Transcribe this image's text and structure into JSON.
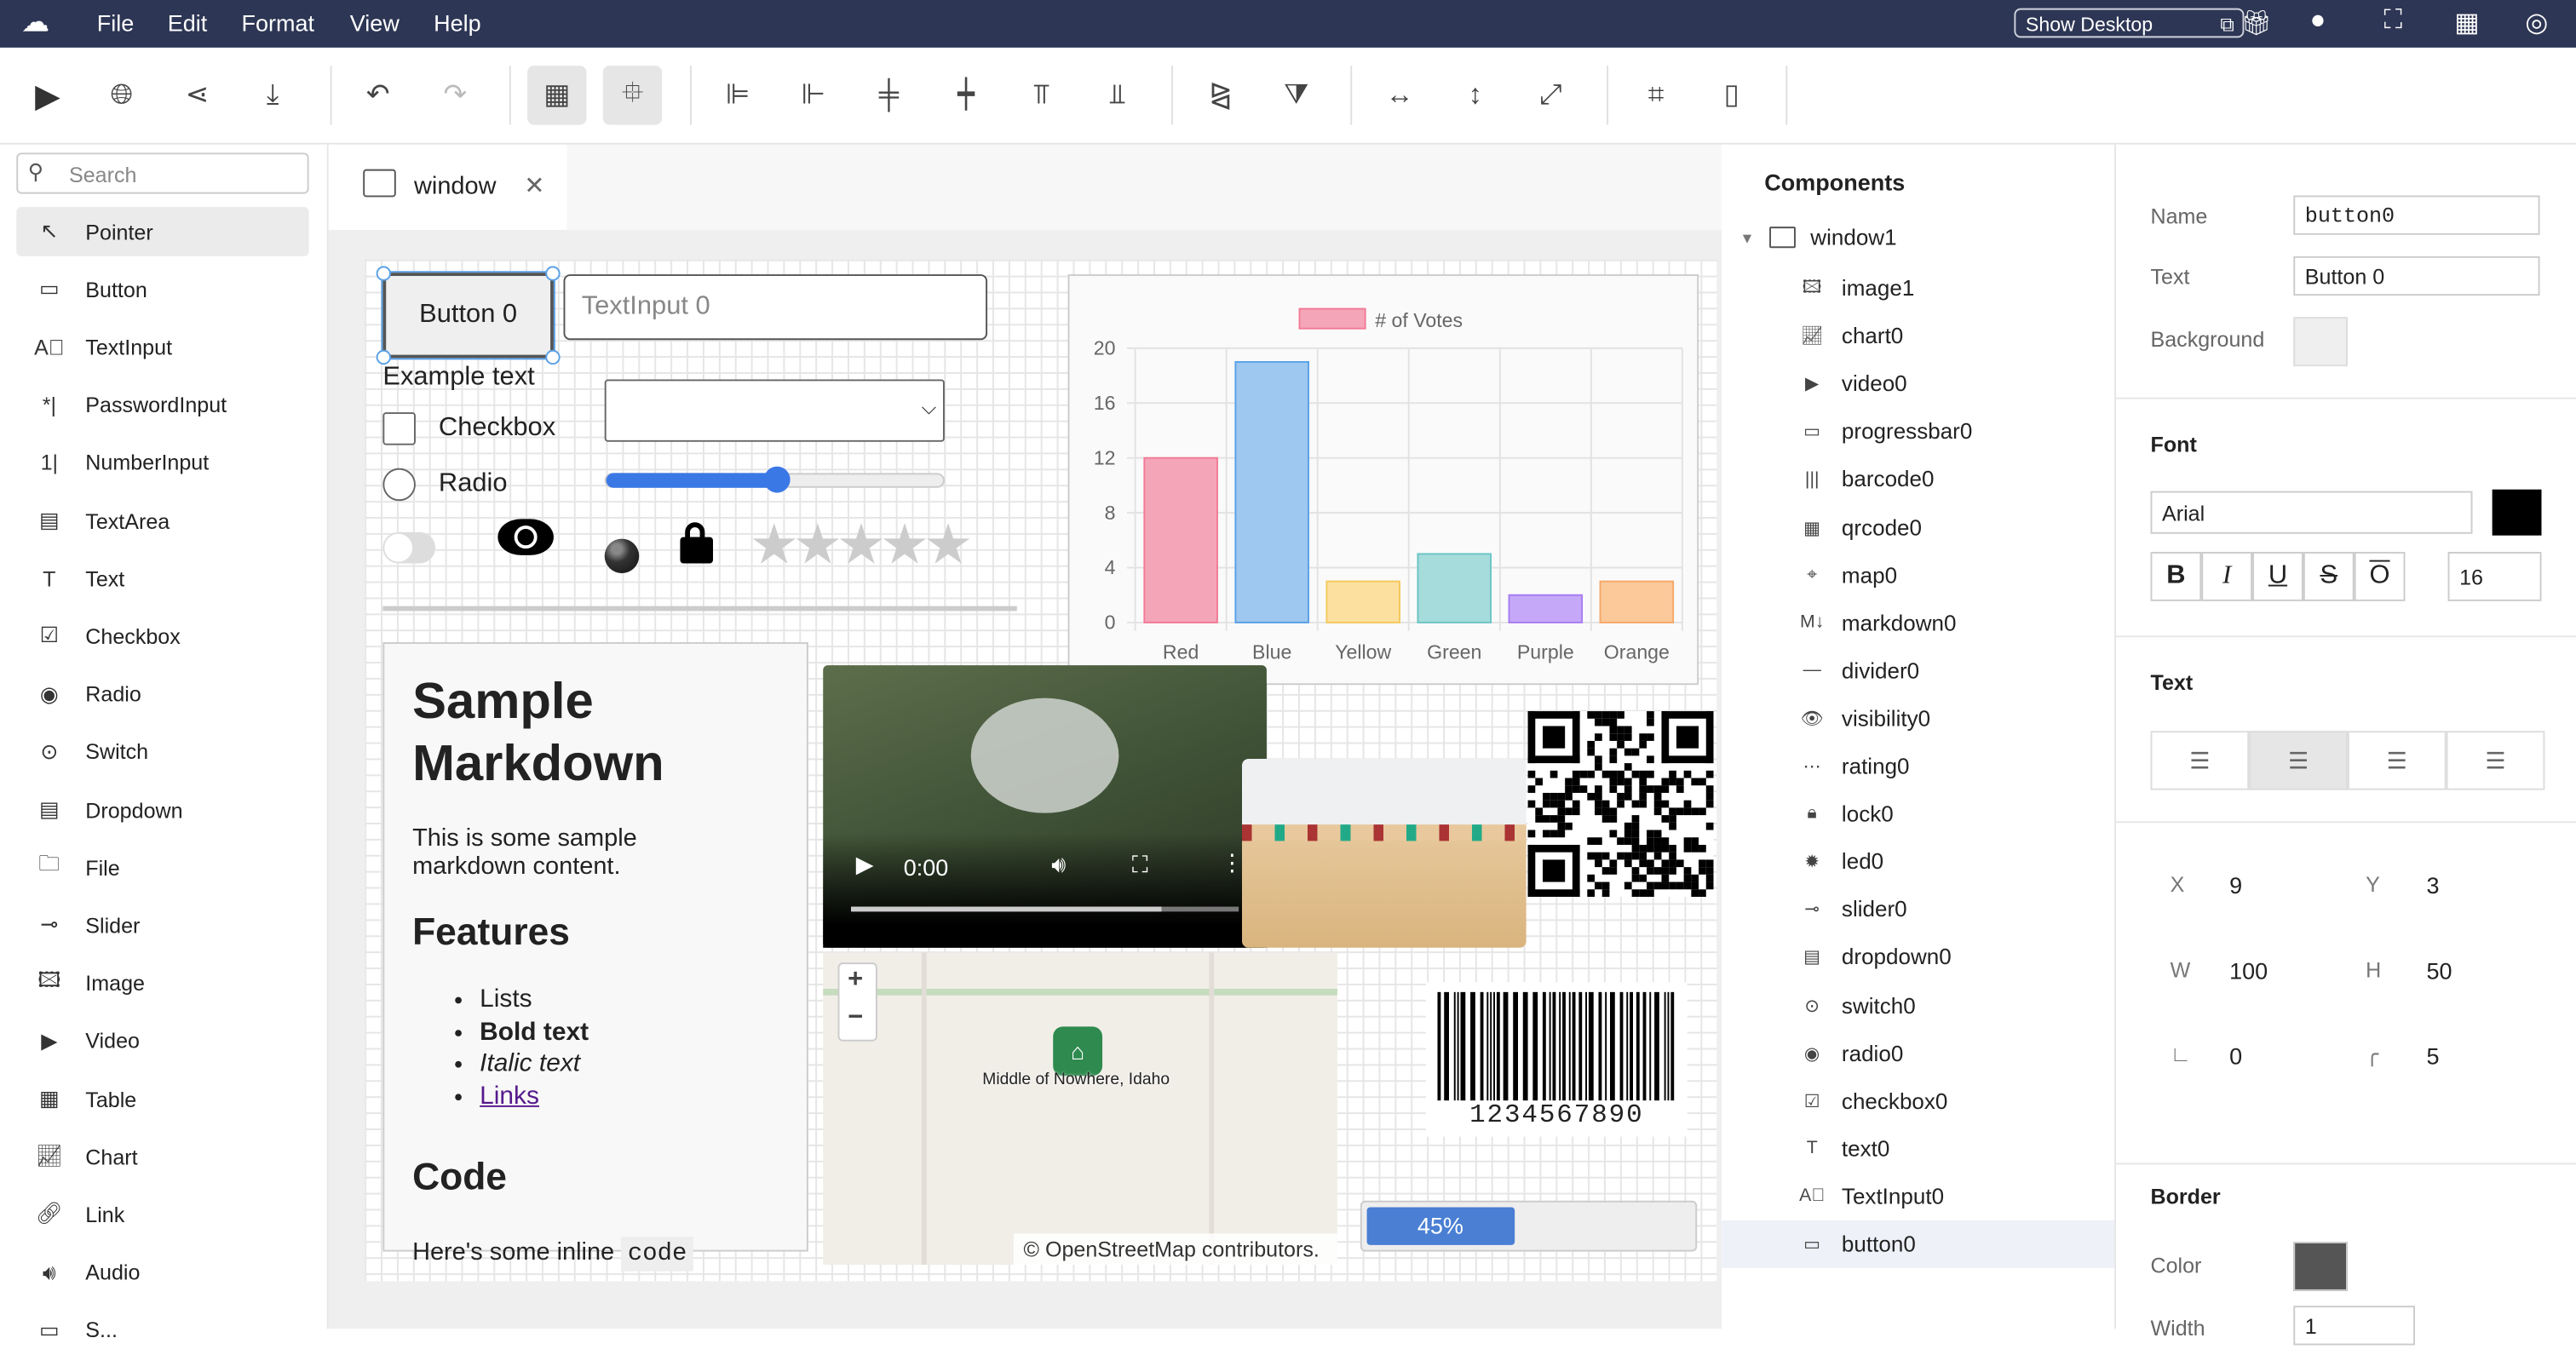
{
  "menubar": {
    "items": [
      "File",
      "Edit",
      "Format",
      "View",
      "Help"
    ],
    "show_desktop": "Show Desktop"
  },
  "sidebar": {
    "search_placeholder": "Search",
    "items": [
      {
        "label": "Pointer",
        "icon": "pointer-icon"
      },
      {
        "label": "Button",
        "icon": "button-icon"
      },
      {
        "label": "TextInput",
        "icon": "textinput-icon"
      },
      {
        "label": "PasswordInput",
        "icon": "password-icon"
      },
      {
        "label": "NumberInput",
        "icon": "number-icon"
      },
      {
        "label": "TextArea",
        "icon": "textarea-icon"
      },
      {
        "label": "Text",
        "icon": "text-icon"
      },
      {
        "label": "Checkbox",
        "icon": "checkbox-icon"
      },
      {
        "label": "Radio",
        "icon": "radio-icon"
      },
      {
        "label": "Switch",
        "icon": "switch-icon"
      },
      {
        "label": "Dropdown",
        "icon": "dropdown-icon"
      },
      {
        "label": "File",
        "icon": "folder-icon"
      },
      {
        "label": "Slider",
        "icon": "slider-icon"
      },
      {
        "label": "Image",
        "icon": "image-icon"
      },
      {
        "label": "Video",
        "icon": "video-icon"
      },
      {
        "label": "Table",
        "icon": "table-icon"
      },
      {
        "label": "Chart",
        "icon": "chart-icon"
      },
      {
        "label": "Link",
        "icon": "link-icon"
      },
      {
        "label": "Audio",
        "icon": "audio-icon"
      },
      {
        "label": "S...",
        "icon": "generic-icon"
      }
    ]
  },
  "tab": {
    "label": "window"
  },
  "canvas": {
    "button": "Button 0",
    "textinput_placeholder": "TextInput 0",
    "text": "Example text",
    "checkbox": "Checkbox",
    "radio": "Radio",
    "slider_value": 0.5,
    "rating": 0,
    "markdown": {
      "h1": "Sample Markdown",
      "p": "This is some sample markdown content.",
      "h2": "Features",
      "list": [
        "Lists",
        "Bold text",
        "Italic text",
        "Links"
      ],
      "h3": "Code",
      "code_line": "Here's some inline",
      "code": "code"
    },
    "map": {
      "marker": "Middle of Nowhere, Idaho",
      "attribution": "© OpenStreetMap contributors.",
      "zoom_in": "+",
      "zoom_out": "−"
    },
    "video": {
      "time": "0:00"
    },
    "barcode": "1234567890",
    "progress": {
      "value": 45,
      "label": "45%"
    }
  },
  "chart_data": {
    "type": "bar",
    "categories": [
      "Red",
      "Blue",
      "Yellow",
      "Green",
      "Purple",
      "Orange"
    ],
    "series": [
      {
        "name": "# of Votes",
        "values": [
          12,
          19,
          3,
          5,
          2,
          3
        ]
      }
    ],
    "ylim": [
      0,
      20
    ],
    "yticks": [
      "0",
      "4",
      "8",
      "12",
      "16",
      "20"
    ],
    "grid": true,
    "legend": "top",
    "colors": [
      "#f4a6b8",
      "#9ec8ef",
      "#fbe0a0",
      "#a6dcdc",
      "#c5a8f7",
      "#fbc99a"
    ],
    "borders": [
      "#f27a95",
      "#5aa1e6",
      "#f5c95e",
      "#6cc4c4",
      "#a77cf2",
      "#f6a868"
    ]
  },
  "components": {
    "title": "Components",
    "root": "window1",
    "items": [
      {
        "label": "image1",
        "icon": "image-icon"
      },
      {
        "label": "chart0",
        "icon": "chart-icon"
      },
      {
        "label": "video0",
        "icon": "video-icon"
      },
      {
        "label": "progressbar0",
        "icon": "progress-icon"
      },
      {
        "label": "barcode0",
        "icon": "barcode-icon"
      },
      {
        "label": "qrcode0",
        "icon": "qrcode-icon"
      },
      {
        "label": "map0",
        "icon": "map-icon"
      },
      {
        "label": "markdown0",
        "icon": "markdown-icon"
      },
      {
        "label": "divider0",
        "icon": "divider-icon"
      },
      {
        "label": "visibility0",
        "icon": "eye-icon"
      },
      {
        "label": "rating0",
        "icon": "rating-icon"
      },
      {
        "label": "lock0",
        "icon": "lock-icon"
      },
      {
        "label": "led0",
        "icon": "led-icon"
      },
      {
        "label": "slider0",
        "icon": "slider-icon"
      },
      {
        "label": "dropdown0",
        "icon": "dropdown-icon"
      },
      {
        "label": "switch0",
        "icon": "switch-icon"
      },
      {
        "label": "radio0",
        "icon": "radio-icon"
      },
      {
        "label": "checkbox0",
        "icon": "checkbox-icon"
      },
      {
        "label": "text0",
        "icon": "text-icon"
      },
      {
        "label": "TextInput0",
        "icon": "textinput-icon"
      },
      {
        "label": "button0",
        "icon": "button-icon"
      }
    ]
  },
  "props": {
    "name_label": "Name",
    "name": "button0",
    "text_label": "Text",
    "text": "Button 0",
    "bg_label": "Background",
    "bg_color": "#efefef",
    "font_head": "Font",
    "font": "Arial",
    "font_color": "#000000",
    "bold": "B",
    "italic": "I",
    "underline": "U",
    "strike": "S",
    "overline": "O",
    "font_size": "16",
    "text_head": "Text",
    "align_selected": "center",
    "x_label": "X",
    "x": "9",
    "y_label": "Y",
    "y": "3",
    "w_label": "W",
    "w": "100",
    "h_label": "H",
    "h": "50",
    "rotation": "0",
    "radius": "5",
    "border_head": "Border",
    "color_label": "Color",
    "border_color": "#555555",
    "width_label": "Width",
    "border_width": "1"
  }
}
